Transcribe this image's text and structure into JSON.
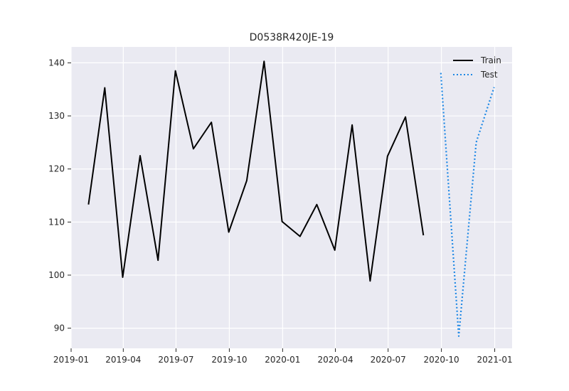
{
  "chart_data": {
    "type": "line",
    "title": "D0538R420JE-19",
    "xlabel": "",
    "ylabel": "",
    "x_axis_type": "date",
    "xlim": [
      "2019-01-01",
      "2021-01-31"
    ],
    "ylim": [
      86.2,
      143
    ],
    "x_ticks": [
      "2019-01-01",
      "2019-04-01",
      "2019-07-01",
      "2019-10-01",
      "2020-01-01",
      "2020-04-01",
      "2020-07-01",
      "2020-10-01",
      "2021-01-01"
    ],
    "x_tick_labels": [
      "2019-01",
      "2019-04",
      "2019-07",
      "2019-10",
      "2020-01",
      "2020-04",
      "2020-07",
      "2020-10",
      "2021-01"
    ],
    "y_ticks": [
      90,
      100,
      110,
      120,
      130,
      140
    ],
    "y_tick_labels": [
      "90",
      "100",
      "110",
      "120",
      "130",
      "140"
    ],
    "grid": true,
    "legend_position": "top-right",
    "series": [
      {
        "name": "Train",
        "color": "#000000",
        "line_style": "solid",
        "points": [
          {
            "x": "2019-01-31",
            "y": 113.3
          },
          {
            "x": "2019-02-28",
            "y": 135.3
          },
          {
            "x": "2019-03-31",
            "y": 99.6
          },
          {
            "x": "2019-04-30",
            "y": 122.5
          },
          {
            "x": "2019-05-31",
            "y": 102.8
          },
          {
            "x": "2019-06-30",
            "y": 138.5
          },
          {
            "x": "2019-07-31",
            "y": 123.8
          },
          {
            "x": "2019-08-31",
            "y": 128.8
          },
          {
            "x": "2019-09-30",
            "y": 108.1
          },
          {
            "x": "2019-10-31",
            "y": 117.8
          },
          {
            "x": "2019-11-30",
            "y": 140.3
          },
          {
            "x": "2019-12-31",
            "y": 110.1
          },
          {
            "x": "2020-01-31",
            "y": 107.3
          },
          {
            "x": "2020-02-29",
            "y": 113.3
          },
          {
            "x": "2020-03-31",
            "y": 104.7
          },
          {
            "x": "2020-04-30",
            "y": 128.3
          },
          {
            "x": "2020-05-31",
            "y": 98.9
          },
          {
            "x": "2020-06-30",
            "y": 122.4
          },
          {
            "x": "2020-07-31",
            "y": 129.8
          },
          {
            "x": "2020-08-31",
            "y": 107.5
          }
        ]
      },
      {
        "name": "Test",
        "color": "#1e88e5",
        "line_style": "dotted",
        "points": [
          {
            "x": "2020-09-30",
            "y": 138.1
          },
          {
            "x": "2020-10-31",
            "y": 88.5
          },
          {
            "x": "2020-11-30",
            "y": 125.0
          },
          {
            "x": "2020-12-31",
            "y": 135.4
          }
        ]
      }
    ]
  }
}
